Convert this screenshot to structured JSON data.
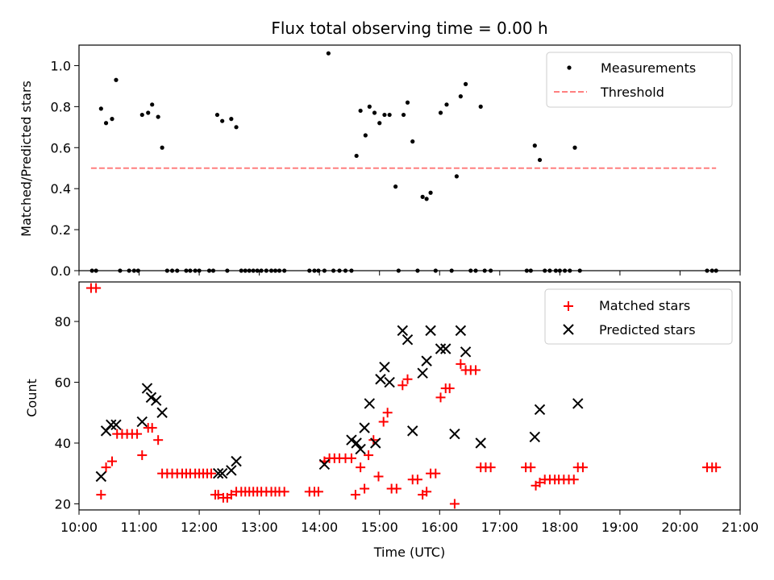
{
  "chart_data": [
    {
      "type": "scatter",
      "title": "Flux total observing time = 0.00 h",
      "ylabel": "Matched/Predicted stars",
      "xlabel": "",
      "xlim": [
        "10:00",
        "21:00"
      ],
      "ylim": [
        0,
        1.1
      ],
      "yticks": [
        "0.0",
        "0.2",
        "0.4",
        "0.6",
        "0.8",
        "1.0"
      ],
      "legend_position": "top-right",
      "grid": false,
      "series": [
        {
          "name": "Measurements",
          "marker": "dot",
          "color": "#000000",
          "points": [
            [
              "10:13",
              0
            ],
            [
              "10:17",
              0
            ],
            [
              "10:22",
              0.79
            ],
            [
              "10:27",
              0.72
            ],
            [
              "10:33",
              0.74
            ],
            [
              "10:37",
              0.93
            ],
            [
              "10:41",
              0
            ],
            [
              "10:50",
              0
            ],
            [
              "10:55",
              0
            ],
            [
              "10:59",
              0
            ],
            [
              "11:03",
              0.76
            ],
            [
              "11:09",
              0.77
            ],
            [
              "11:13",
              0.81
            ],
            [
              "11:19",
              0.75
            ],
            [
              "11:23",
              0.6
            ],
            [
              "11:28",
              0
            ],
            [
              "11:33",
              0
            ],
            [
              "11:38",
              0
            ],
            [
              "11:47",
              0
            ],
            [
              "11:51",
              0
            ],
            [
              "11:56",
              0
            ],
            [
              "12:00",
              0
            ],
            [
              "12:10",
              0
            ],
            [
              "12:14",
              0
            ],
            [
              "12:18",
              0.76
            ],
            [
              "12:23",
              0.73
            ],
            [
              "12:28",
              0
            ],
            [
              "12:32",
              0.74
            ],
            [
              "12:37",
              0.7
            ],
            [
              "12:42",
              0
            ],
            [
              "12:46",
              0
            ],
            [
              "12:50",
              0
            ],
            [
              "12:54",
              0
            ],
            [
              "12:58",
              0
            ],
            [
              "13:02",
              0
            ],
            [
              "13:07",
              0
            ],
            [
              "13:12",
              0
            ],
            [
              "13:16",
              0
            ],
            [
              "13:20",
              0
            ],
            [
              "13:25",
              0
            ],
            [
              "13:50",
              0
            ],
            [
              "13:55",
              0
            ],
            [
              "13:59",
              0
            ],
            [
              "14:05",
              0
            ],
            [
              "14:09",
              1.06
            ],
            [
              "14:14",
              0
            ],
            [
              "14:20",
              0
            ],
            [
              "14:26",
              0
            ],
            [
              "14:32",
              0
            ],
            [
              "14:37",
              0.56
            ],
            [
              "14:41",
              0.78
            ],
            [
              "14:46",
              0.66
            ],
            [
              "14:50",
              0.8
            ],
            [
              "14:55",
              0.77
            ],
            [
              "15:00",
              0.72
            ],
            [
              "15:05",
              0.76
            ],
            [
              "15:10",
              0.76
            ],
            [
              "15:16",
              0.41
            ],
            [
              "15:19",
              0
            ],
            [
              "15:24",
              0.76
            ],
            [
              "15:28",
              0.82
            ],
            [
              "15:33",
              0.63
            ],
            [
              "15:38",
              0
            ],
            [
              "15:43",
              0.36
            ],
            [
              "15:47",
              0.35
            ],
            [
              "15:51",
              0.38
            ],
            [
              "15:56",
              0
            ],
            [
              "16:01",
              0.77
            ],
            [
              "16:07",
              0.81
            ],
            [
              "16:12",
              0
            ],
            [
              "16:17",
              0.46
            ],
            [
              "16:21",
              0.85
            ],
            [
              "16:26",
              0.91
            ],
            [
              "16:31",
              0
            ],
            [
              "16:36",
              0
            ],
            [
              "16:41",
              0.8
            ],
            [
              "16:45",
              0
            ],
            [
              "16:51",
              0
            ],
            [
              "17:27",
              0
            ],
            [
              "17:31",
              0
            ],
            [
              "17:35",
              0.61
            ],
            [
              "17:40",
              0.54
            ],
            [
              "17:45",
              0
            ],
            [
              "17:50",
              0
            ],
            [
              "17:56",
              0
            ],
            [
              "18:00",
              0
            ],
            [
              "18:05",
              0
            ],
            [
              "18:10",
              0
            ],
            [
              "18:15",
              0.6
            ],
            [
              "18:20",
              0
            ],
            [
              "20:27",
              0
            ],
            [
              "20:32",
              0
            ],
            [
              "20:36",
              0
            ]
          ]
        },
        {
          "name": "Threshold",
          "marker": "dashed-line",
          "color": "#ff7f7f",
          "points": [
            [
              "10:12",
              0.5
            ],
            [
              "20:36",
              0.5
            ]
          ]
        }
      ]
    },
    {
      "type": "scatter",
      "title": "",
      "ylabel": "Count",
      "xlabel": "Time (UTC)",
      "xlim": [
        "10:00",
        "21:00"
      ],
      "ylim": [
        18,
        93
      ],
      "xticks": [
        "10:00",
        "11:00",
        "12:00",
        "13:00",
        "14:00",
        "15:00",
        "16:00",
        "17:00",
        "18:00",
        "19:00",
        "20:00",
        "21:00"
      ],
      "yticks": [
        "20",
        "40",
        "60",
        "80"
      ],
      "legend_position": "top-right",
      "grid": false,
      "series": [
        {
          "name": "Matched stars",
          "marker": "plus",
          "color": "#ff0000",
          "points": [
            [
              "10:12",
              91
            ],
            [
              "10:17",
              91
            ],
            [
              "10:22",
              23
            ],
            [
              "10:27",
              32
            ],
            [
              "10:33",
              34
            ],
            [
              "10:38",
              43
            ],
            [
              "10:43",
              43
            ],
            [
              "10:48",
              43
            ],
            [
              "10:53",
              43
            ],
            [
              "10:58",
              43
            ],
            [
              "11:03",
              36
            ],
            [
              "11:09",
              45
            ],
            [
              "11:13",
              45
            ],
            [
              "11:19",
              41
            ],
            [
              "11:23",
              30
            ],
            [
              "11:28",
              30
            ],
            [
              "11:33",
              30
            ],
            [
              "11:38",
              30
            ],
            [
              "11:43",
              30
            ],
            [
              "11:47",
              30
            ],
            [
              "11:51",
              30
            ],
            [
              "11:56",
              30
            ],
            [
              "12:00",
              30
            ],
            [
              "12:04",
              30
            ],
            [
              "12:08",
              30
            ],
            [
              "12:12",
              30
            ],
            [
              "12:16",
              23
            ],
            [
              "12:19",
              23
            ],
            [
              "12:24",
              22
            ],
            [
              "12:28",
              22
            ],
            [
              "12:32",
              23
            ],
            [
              "12:37",
              24
            ],
            [
              "12:42",
              24
            ],
            [
              "12:46",
              24
            ],
            [
              "12:50",
              24
            ],
            [
              "12:54",
              24
            ],
            [
              "12:58",
              24
            ],
            [
              "13:02",
              24
            ],
            [
              "13:07",
              24
            ],
            [
              "13:12",
              24
            ],
            [
              "13:16",
              24
            ],
            [
              "13:20",
              24
            ],
            [
              "13:25",
              24
            ],
            [
              "13:50",
              24
            ],
            [
              "13:55",
              24
            ],
            [
              "13:59",
              24
            ],
            [
              "14:05",
              34
            ],
            [
              "14:10",
              35
            ],
            [
              "14:15",
              35
            ],
            [
              "14:20",
              35
            ],
            [
              "14:26",
              35
            ],
            [
              "14:32",
              35
            ],
            [
              "14:36",
              23
            ],
            [
              "14:41",
              32
            ],
            [
              "14:45",
              25
            ],
            [
              "14:49",
              36
            ],
            [
              "14:54",
              41
            ],
            [
              "14:59",
              29
            ],
            [
              "15:04",
              47
            ],
            [
              "15:08",
              50
            ],
            [
              "15:12",
              25
            ],
            [
              "15:17",
              25
            ],
            [
              "15:23",
              59
            ],
            [
              "15:28",
              61
            ],
            [
              "15:33",
              28
            ],
            [
              "15:38",
              28
            ],
            [
              "15:43",
              23
            ],
            [
              "15:47",
              24
            ],
            [
              "15:51",
              30
            ],
            [
              "15:56",
              30
            ],
            [
              "16:01",
              55
            ],
            [
              "16:06",
              58
            ],
            [
              "16:10",
              58
            ],
            [
              "16:15",
              20
            ],
            [
              "16:21",
              66
            ],
            [
              "16:26",
              64
            ],
            [
              "16:31",
              64
            ],
            [
              "16:36",
              64
            ],
            [
              "16:41",
              32
            ],
            [
              "16:46",
              32
            ],
            [
              "16:51",
              32
            ],
            [
              "17:26",
              32
            ],
            [
              "17:31",
              32
            ],
            [
              "17:36",
              26
            ],
            [
              "17:40",
              27
            ],
            [
              "17:45",
              28
            ],
            [
              "17:50",
              28
            ],
            [
              "17:55",
              28
            ],
            [
              "17:59",
              28
            ],
            [
              "18:04",
              28
            ],
            [
              "18:09",
              28
            ],
            [
              "18:14",
              28
            ],
            [
              "18:18",
              32
            ],
            [
              "18:23",
              32
            ],
            [
              "20:27",
              32
            ],
            [
              "20:32",
              32
            ],
            [
              "20:36",
              32
            ]
          ]
        },
        {
          "name": "Predicted stars",
          "marker": "x",
          "color": "#000000",
          "points": [
            [
              "10:22",
              29
            ],
            [
              "10:27",
              44
            ],
            [
              "10:32",
              46
            ],
            [
              "10:37",
              46
            ],
            [
              "11:03",
              47
            ],
            [
              "11:08",
              58
            ],
            [
              "11:12",
              55
            ],
            [
              "11:17",
              54
            ],
            [
              "11:23",
              50
            ],
            [
              "12:19",
              30
            ],
            [
              "12:23",
              30
            ],
            [
              "12:32",
              31
            ],
            [
              "12:37",
              34
            ],
            [
              "14:05",
              33
            ],
            [
              "14:32",
              41
            ],
            [
              "14:37",
              40
            ],
            [
              "14:41",
              38
            ],
            [
              "14:45",
              45
            ],
            [
              "14:50",
              53
            ],
            [
              "14:56",
              40
            ],
            [
              "15:01",
              61
            ],
            [
              "15:05",
              65
            ],
            [
              "15:10",
              60
            ],
            [
              "15:23",
              77
            ],
            [
              "15:28",
              74
            ],
            [
              "15:33",
              44
            ],
            [
              "15:43",
              63
            ],
            [
              "15:47",
              67
            ],
            [
              "15:51",
              77
            ],
            [
              "16:01",
              71
            ],
            [
              "16:06",
              71
            ],
            [
              "16:15",
              43
            ],
            [
              "16:21",
              77
            ],
            [
              "16:26",
              70
            ],
            [
              "16:41",
              40
            ],
            [
              "17:35",
              42
            ],
            [
              "17:40",
              51
            ],
            [
              "18:18",
              53
            ]
          ]
        }
      ]
    }
  ]
}
